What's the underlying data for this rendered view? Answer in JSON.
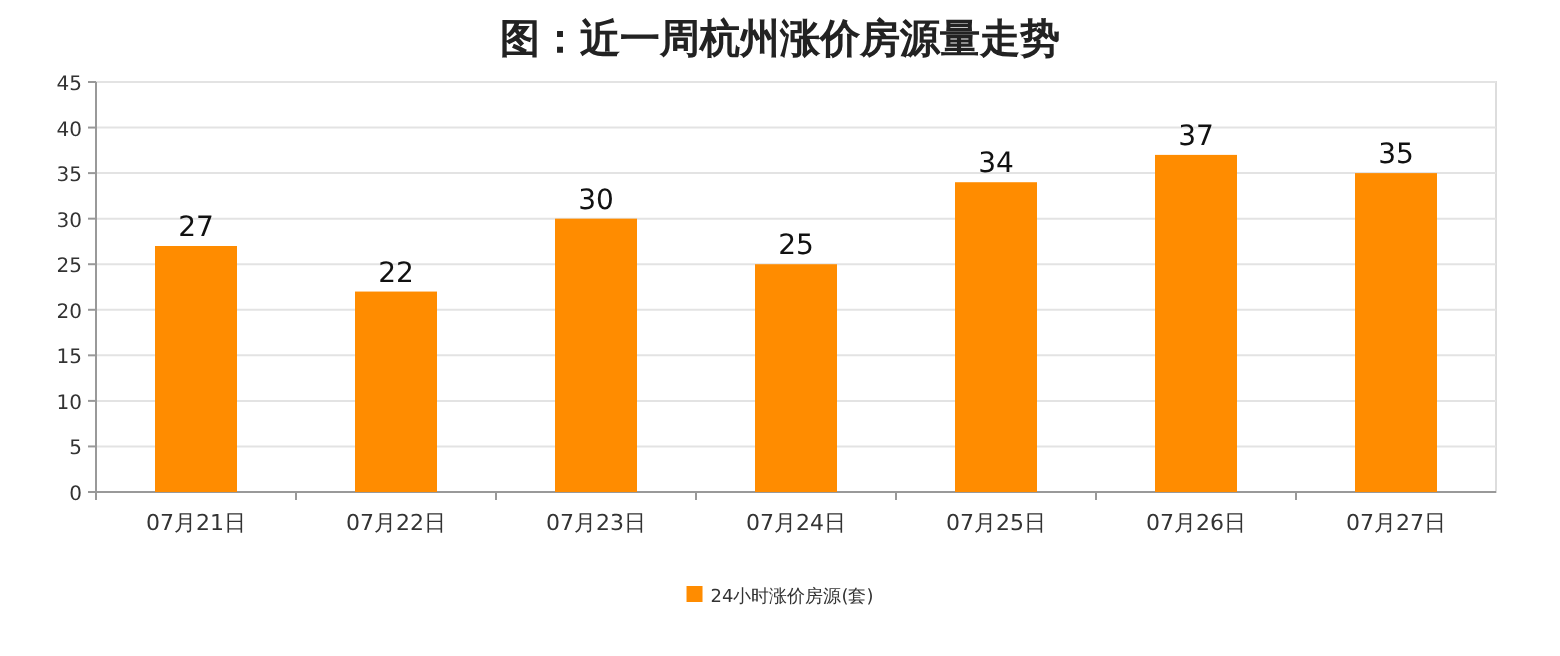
{
  "chart_data": {
    "type": "bar",
    "title": "图：近一周杭州涨价房源量走势",
    "categories": [
      "07月21日",
      "07月22日",
      "07月23日",
      "07月24日",
      "07月25日",
      "07月26日",
      "07月27日"
    ],
    "series": [
      {
        "name": "24小时涨价房源(套)",
        "color": "#ff8c00",
        "values": [
          27,
          22,
          30,
          25,
          34,
          37,
          35
        ]
      }
    ],
    "ylim": [
      0,
      45
    ],
    "yticks": [
      0,
      5,
      10,
      15,
      20,
      25,
      30,
      35,
      40,
      45
    ],
    "grid": "y",
    "legend": "bottom",
    "data_labels": true
  }
}
